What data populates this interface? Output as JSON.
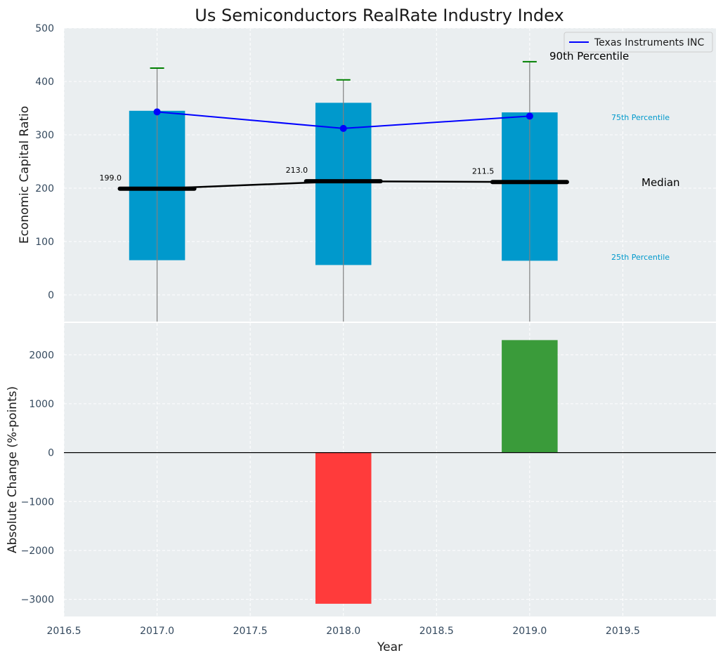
{
  "chart_data": [
    {
      "type": "box",
      "title": "Us Semiconductors RealRate Industry Index",
      "ylabel": "Economic Capital Ratio",
      "xlim": [
        2016.5,
        2020.0
      ],
      "ylim": [
        -50,
        500
      ],
      "yticks": [
        0,
        100,
        200,
        300,
        400,
        500
      ],
      "grid": true,
      "legend": {
        "position": "top-right",
        "entries": [
          "Texas Instruments INC"
        ]
      },
      "categories": [
        2017,
        2018,
        2019
      ],
      "p25": [
        65,
        56,
        64
      ],
      "p75": [
        345,
        360,
        342
      ],
      "p90": [
        425,
        403,
        437
      ],
      "median": [
        199.0,
        213.0,
        211.5
      ],
      "median_labels": [
        "199.0",
        "213.0",
        "211.5"
      ],
      "series": [
        {
          "name": "Texas Instruments INC",
          "x": [
            2017,
            2018,
            2019
          ],
          "values": [
            343,
            312,
            335
          ],
          "color": "#0000ff"
        }
      ],
      "annotations": {
        "p90": "90th Percentile",
        "p75": "75th Percentile",
        "median": "Median",
        "p25": "25th Percentile"
      },
      "colors": {
        "box": "#0099cc",
        "median": "#000000",
        "whisker": "#808080",
        "p90_cap": "#008000",
        "background": "#eaeef0"
      }
    },
    {
      "type": "bar",
      "ylabel": "Absolute Change (%-points)",
      "xlabel": "Year",
      "xlim": [
        2016.5,
        2020.0
      ],
      "xticks": [
        2016.5,
        2017.0,
        2017.5,
        2018.0,
        2018.5,
        2019.0,
        2019.5
      ],
      "xtick_labels": [
        "2016.5",
        "2017.0",
        "2017.5",
        "2018.0",
        "2018.5",
        "2019.0",
        "2019.5"
      ],
      "ylim": [
        -3350,
        2650
      ],
      "yticks": [
        -3000,
        -2000,
        -1000,
        0,
        1000,
        2000
      ],
      "ytick_labels": [
        "−3000",
        "−2000",
        "−1000",
        "0",
        "1000",
        "2000"
      ],
      "x": [
        2018,
        2019
      ],
      "values": [
        -3090,
        2300
      ],
      "colors": [
        "#ff3b3b",
        "#3a9b3a"
      ],
      "grid": true
    }
  ]
}
